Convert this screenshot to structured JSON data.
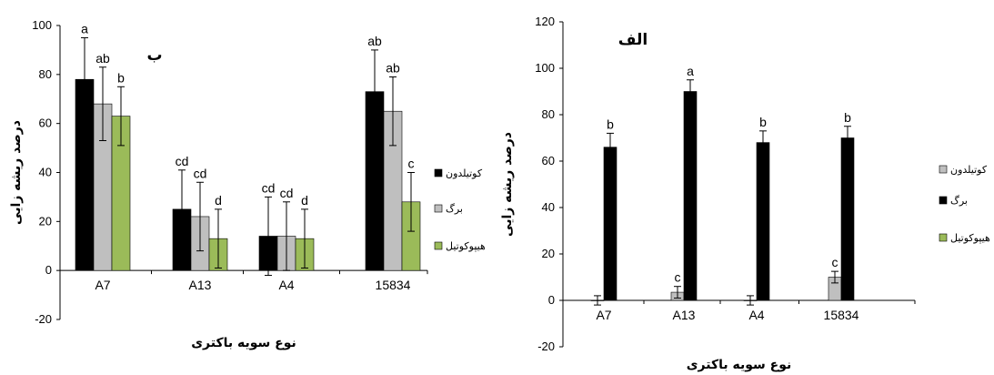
{
  "chart_data": [
    {
      "type": "bar",
      "panel_label": "ب",
      "categories": [
        "A7",
        "A13",
        "A4",
        "15834"
      ],
      "series": [
        {
          "name": "کوتیلدون",
          "color": "#000000",
          "values": [
            78,
            25,
            14,
            73
          ],
          "errors": [
            17,
            16,
            16,
            17
          ],
          "letters": [
            "a",
            "cd",
            "cd",
            "ab"
          ]
        },
        {
          "name": "برگ",
          "color": "#bfbfbf",
          "values": [
            68,
            22,
            14,
            65
          ],
          "errors": [
            15,
            14,
            14,
            14
          ],
          "letters": [
            "ab",
            "cd",
            "cd",
            "ab"
          ]
        },
        {
          "name": "هیپوکوتیل",
          "color": "#9bbb59",
          "values": [
            63,
            13,
            13,
            28
          ],
          "errors": [
            12,
            12,
            12,
            12
          ],
          "letters": [
            "b",
            "d",
            "d",
            "c"
          ]
        }
      ],
      "ylim": [
        -20,
        100
      ],
      "yticks": [
        -20,
        0,
        20,
        40,
        60,
        80,
        100
      ],
      "xlabel": "نوع سویه باکتری",
      "ylabel": "درصد ریشه زایی",
      "legend_position": "right"
    },
    {
      "type": "bar",
      "panel_label": "الف",
      "categories": [
        "A7",
        "A13",
        "A4",
        "15834"
      ],
      "series": [
        {
          "name": "کوتیلدون",
          "color": "#bfbfbf",
          "values": [
            0,
            3.5,
            0,
            10
          ],
          "errors": [
            2,
            2.5,
            2,
            2.5
          ],
          "letters": [
            "",
            "c",
            "",
            "c"
          ]
        },
        {
          "name": "برگ",
          "color": "#000000",
          "values": [
            66,
            90,
            68,
            70
          ],
          "errors": [
            6,
            5,
            5,
            5
          ],
          "letters": [
            "b",
            "a",
            "b",
            "b"
          ]
        },
        {
          "name": "هیپوکوتیل",
          "color": "#9bbb59",
          "values": [
            0,
            0,
            0,
            0
          ],
          "errors": [
            0,
            0,
            0,
            0
          ],
          "letters": [
            "",
            "",
            "",
            ""
          ]
        }
      ],
      "ylim": [
        -20,
        120
      ],
      "yticks": [
        -20,
        0,
        20,
        40,
        60,
        80,
        100,
        120
      ],
      "xlabel": "نوع سویه باکتری",
      "ylabel": "درصد ریشه زایی",
      "legend_position": "right"
    }
  ]
}
